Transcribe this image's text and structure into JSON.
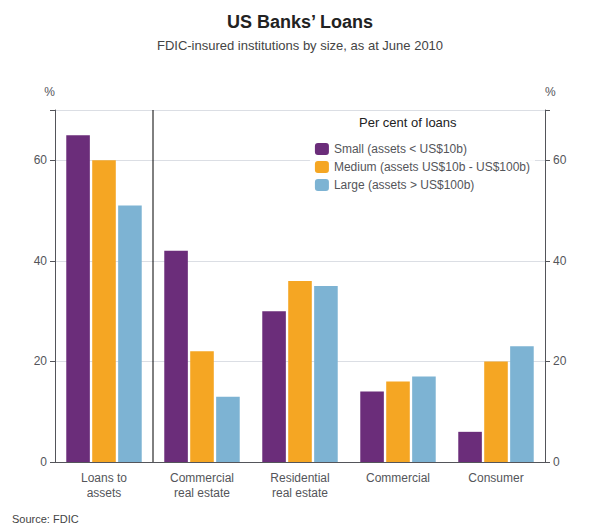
{
  "chart_data": {
    "type": "bar",
    "title": "US Banks’ Loans",
    "subtitle": "FDIC-insured institutions by size, as at June 2010",
    "annotation": "Per cent of loans",
    "source": "Source: FDIC",
    "ylabel": "%",
    "y2label": "%",
    "categories": [
      "Loans to\nassets",
      "Commercial\nreal estate",
      "Residential\nreal estate",
      "Commercial",
      "Consumer"
    ],
    "series": [
      {
        "name": "Small (assets < US$10b)",
        "color": "#6b2d7a",
        "values": [
          65,
          42,
          30,
          14,
          6
        ]
      },
      {
        "name": "Medium (assets US$10b - US$100b)",
        "color": "#f5a623",
        "values": [
          60,
          22,
          36,
          16,
          20
        ]
      },
      {
        "name": "Large (assets > US$100b)",
        "color": "#7db3d3",
        "values": [
          51,
          13,
          35,
          17,
          23
        ]
      }
    ],
    "ylim": [
      0,
      70
    ],
    "yticks": [
      0,
      20,
      40,
      60
    ],
    "y2lim": [
      0,
      70
    ],
    "y2ticks": [
      0,
      20,
      40,
      60
    ],
    "grid": true,
    "legend": "upper right"
  }
}
